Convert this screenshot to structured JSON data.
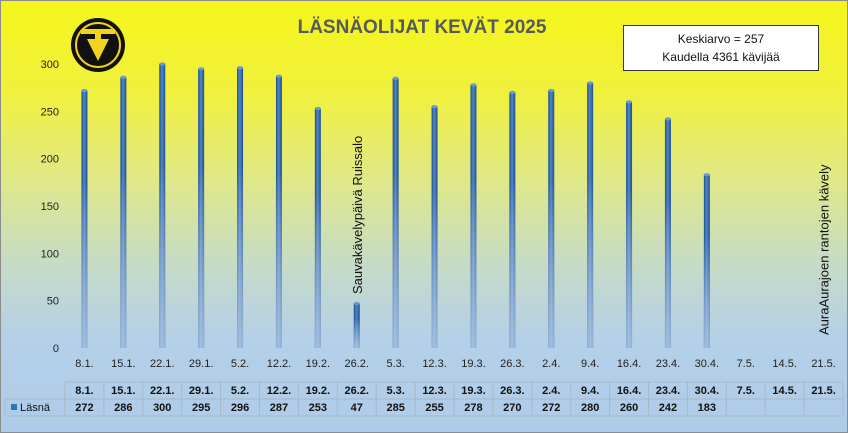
{
  "stats": {
    "mean_label": "Keskiarvo = 257",
    "season_label": "Kaudella 4361 kävijää"
  },
  "colors": {
    "bar": "#3a6fb0",
    "bar_dark": "#1f4f8c",
    "legend": "#2e75b6"
  },
  "chart_data": {
    "type": "bar",
    "title": "LÄSNÄOLIJAT KEVÄT 2025",
    "categories": [
      "8.1.",
      "15.1.",
      "22.1.",
      "29.1.",
      "5.2.",
      "12.2.",
      "19.2.",
      "26.2.",
      "5.3.",
      "12.3.",
      "19.3.",
      "26.3.",
      "2.4.",
      "9.4.",
      "16.4.",
      "23.4.",
      "30.4.",
      "7.5.",
      "14.5.",
      "21.5."
    ],
    "series": [
      {
        "name": "Läsnä",
        "values": [
          272,
          286,
          300,
          295,
          296,
          287,
          253,
          47,
          285,
          255,
          278,
          270,
          272,
          280,
          260,
          242,
          183,
          null,
          null,
          null
        ]
      }
    ],
    "ylim": [
      0,
      300
    ],
    "yticks": [
      0,
      50,
      100,
      150,
      200,
      250,
      300
    ],
    "grid": false,
    "data_table": true,
    "annotations": [
      {
        "category": "26.2.",
        "text": "Sauvakävelypäivä Ruissalo"
      },
      {
        "category": "21.5.",
        "text": "AuraAurajoen rantojen kävely"
      }
    ]
  }
}
